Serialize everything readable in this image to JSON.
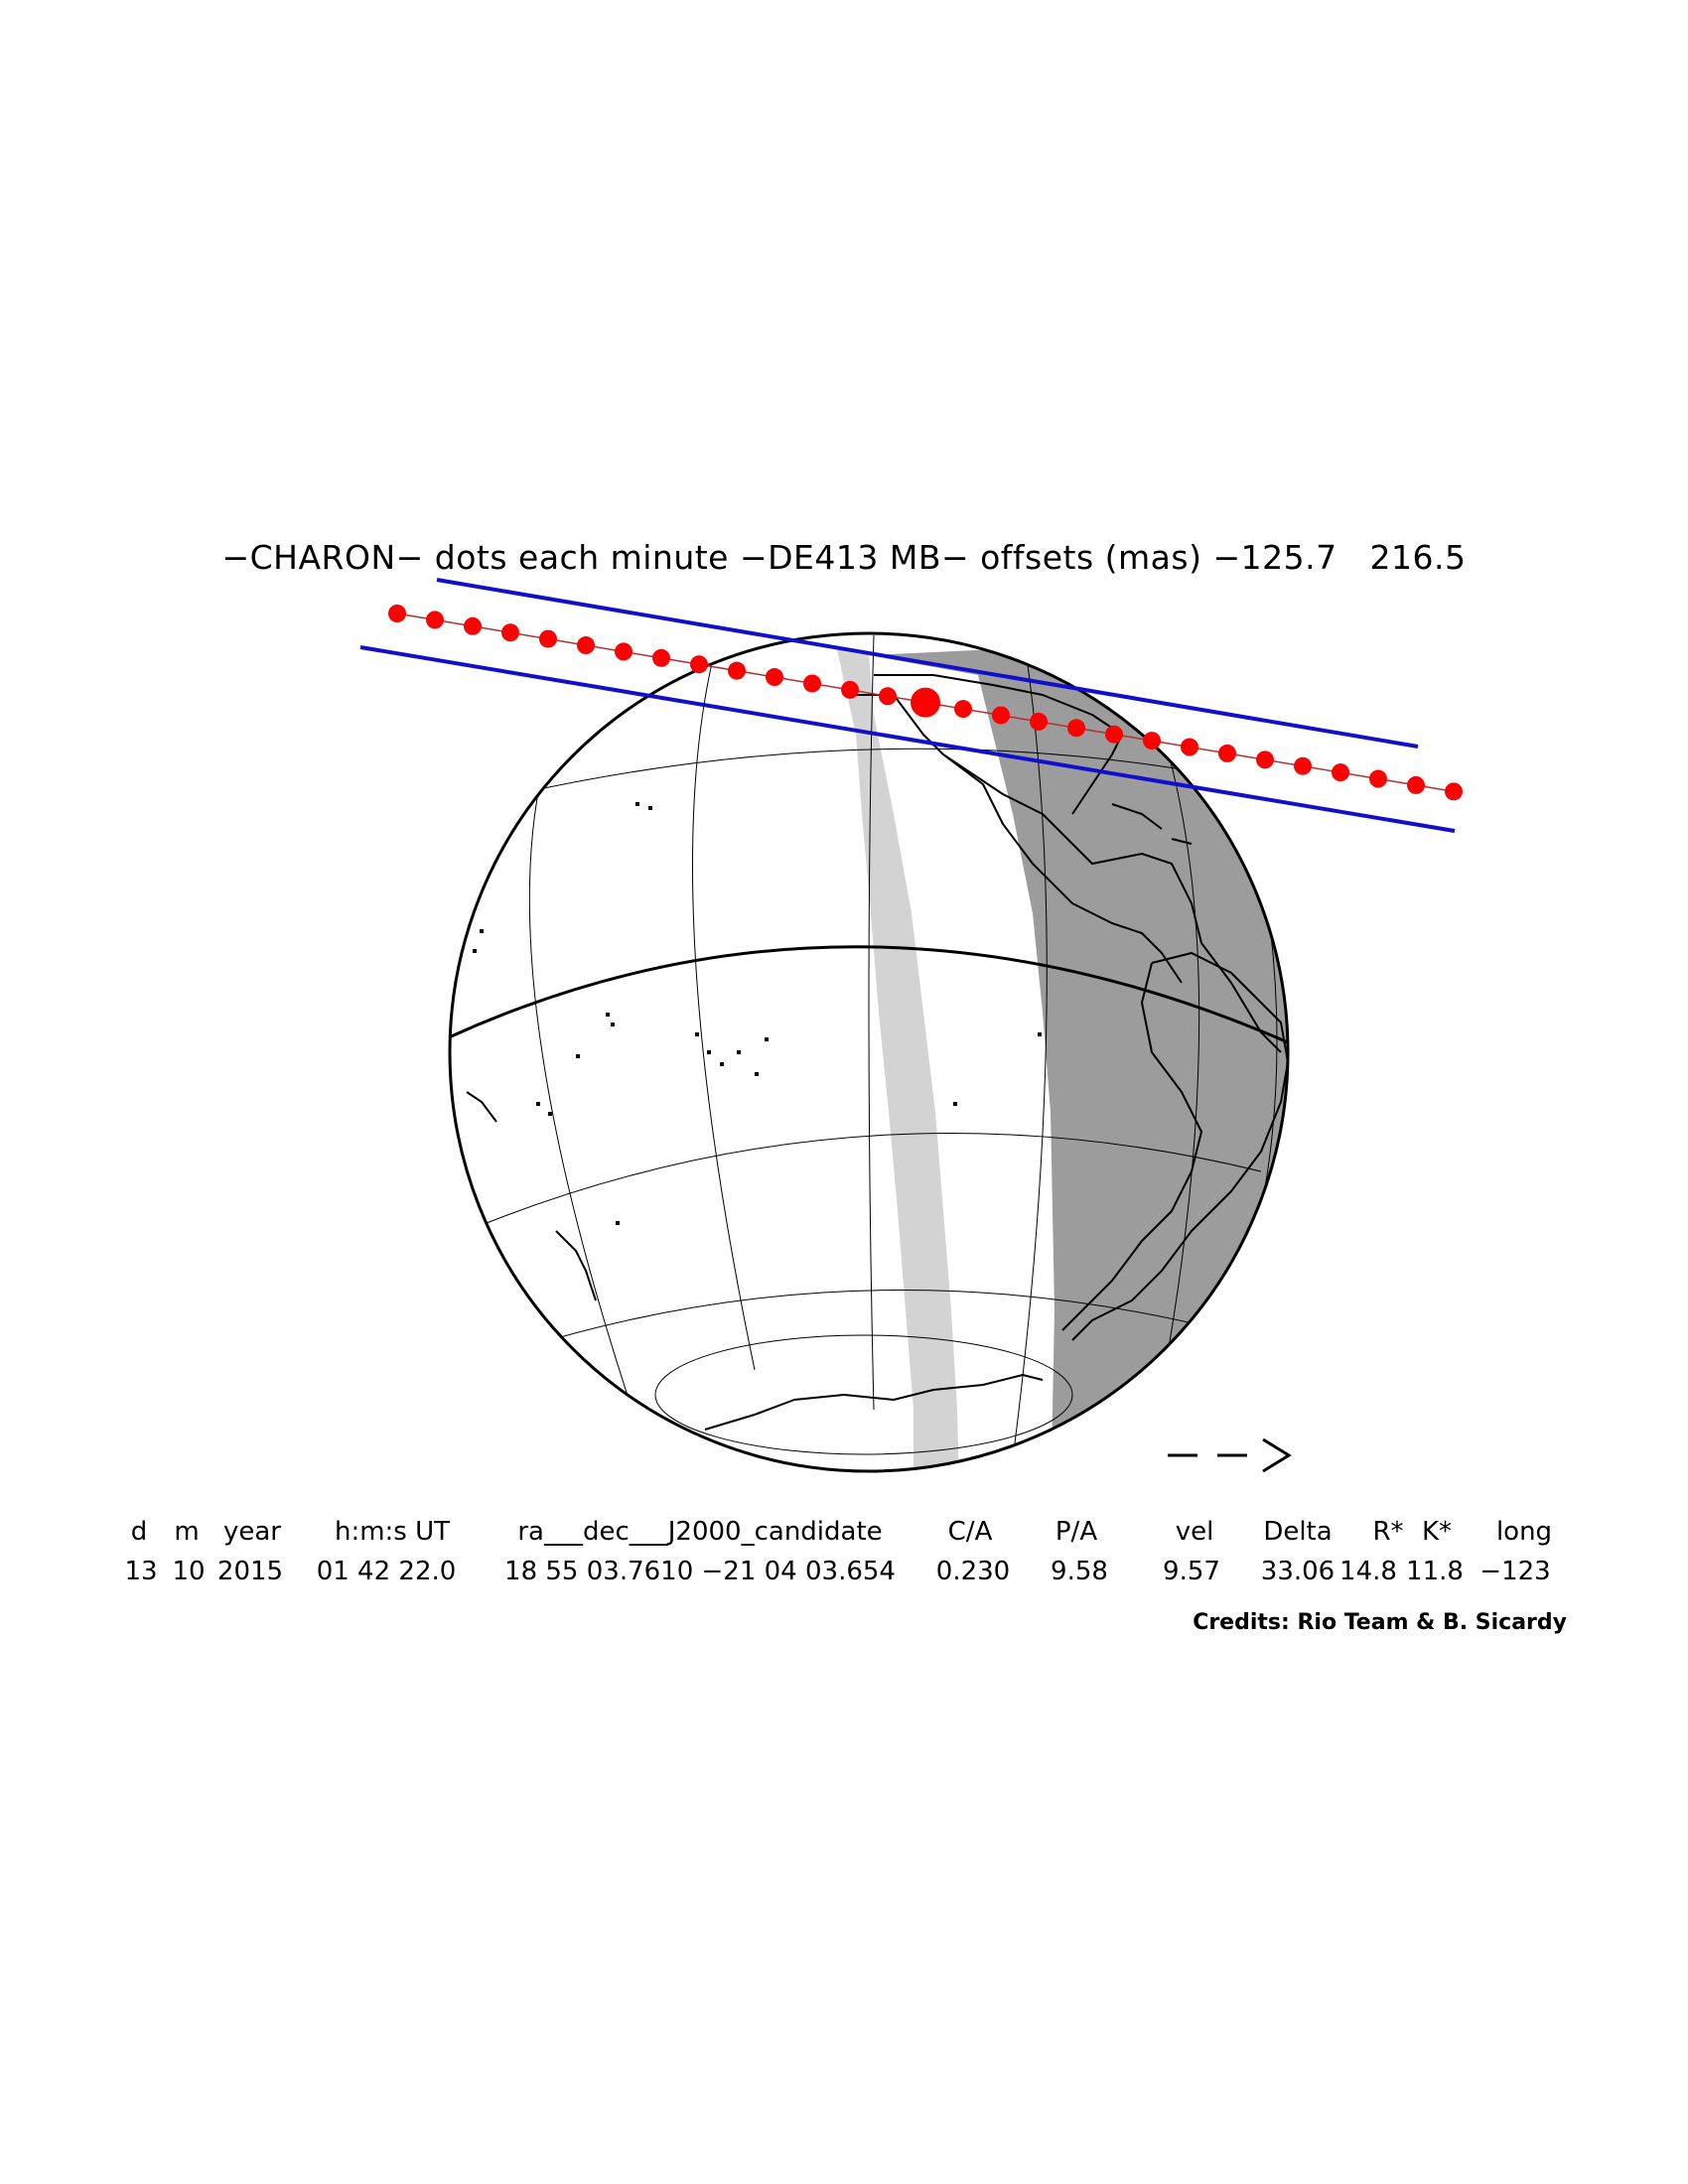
{
  "title": "−CHARON− dots each minute −DE413 MB− offsets (mas) −125.7   216.5",
  "table": {
    "headers": [
      "d",
      "m",
      "year",
      "h:m:s UT",
      "ra___dec___J2000_candidate",
      "C/A",
      "P/A",
      "vel",
      "Delta",
      "R*",
      "K*",
      "long"
    ],
    "values": [
      "13",
      "10",
      "2015",
      "01 42 22.0",
      "18 55 03.7610 −21 04 03.654",
      "0.230",
      "9.58",
      "9.57",
      "33.06",
      "14.8",
      "11.8",
      "−123"
    ]
  },
  "direction_arrow": "− −>",
  "credits": "Credits: Rio Team & B. Sicardy",
  "colors": {
    "path_dots": "#ff0000",
    "shadow_limits": "#1010cc",
    "twilight_zone": "#d0d0d0",
    "night_zone": "#9a9a9a",
    "grid": "#000000"
  }
}
